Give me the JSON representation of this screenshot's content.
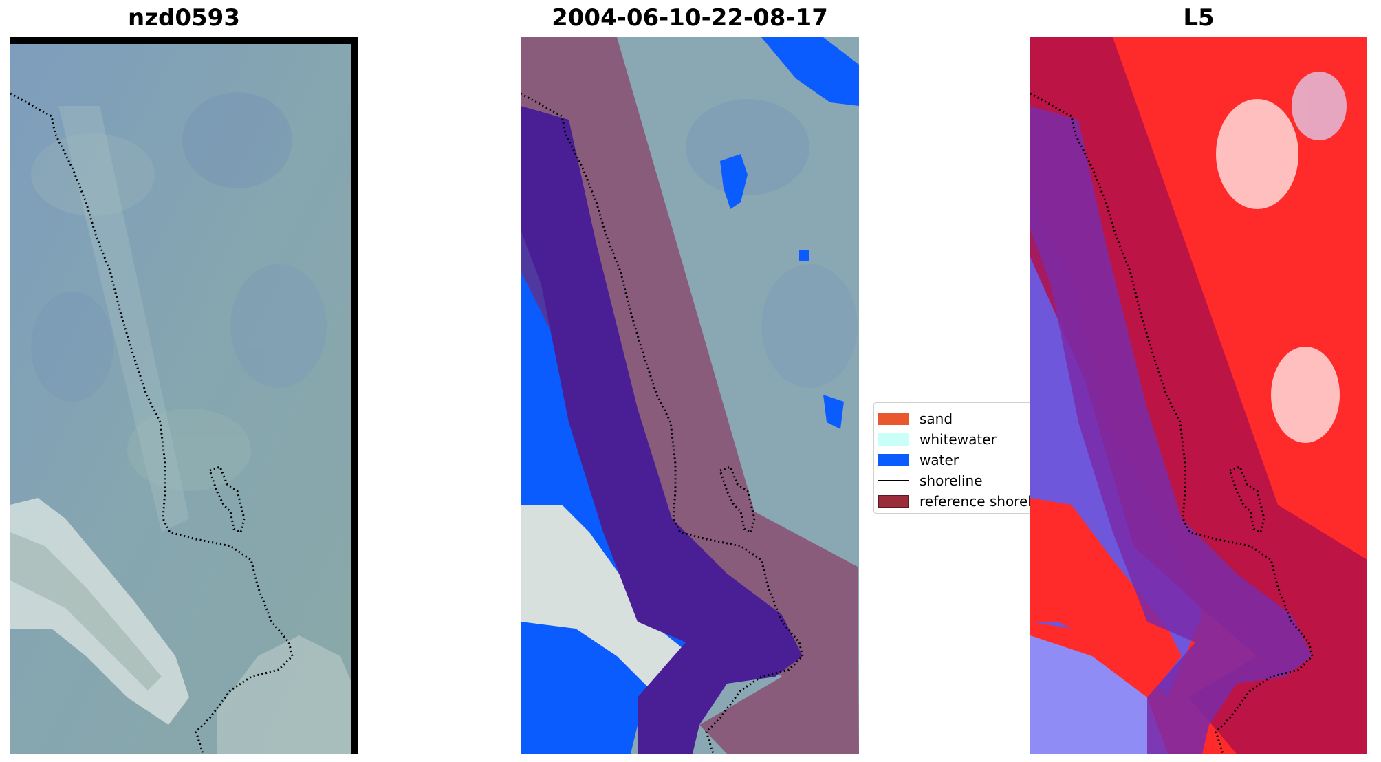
{
  "panels": [
    {
      "title": "nzd0593"
    },
    {
      "title": "2004-06-10-22-08-17"
    },
    {
      "title": "L5"
    }
  ],
  "legend": {
    "items": [
      {
        "label": "sand",
        "color": "#e8572e",
        "kind": "patch"
      },
      {
        "label": "whitewater",
        "color": "#c8fff6",
        "kind": "patch"
      },
      {
        "label": "water",
        "color": "#0a5cff",
        "kind": "patch"
      },
      {
        "label": "shoreline",
        "color": "#000000",
        "kind": "line"
      },
      {
        "label": "reference shoreline buffer",
        "color": "#9b2c3a",
        "kind": "patch"
      }
    ]
  },
  "colors": {
    "imagery_base": "#7f9eaf",
    "imagery_light": "#c9d9d3",
    "buffer_overlay": "#8b1e4e",
    "classified_water": "#0a5cff",
    "classified_water_buffer": "#4a1f96",
    "index_positive": "#ff1e1e",
    "index_negative": "#ffffff"
  }
}
